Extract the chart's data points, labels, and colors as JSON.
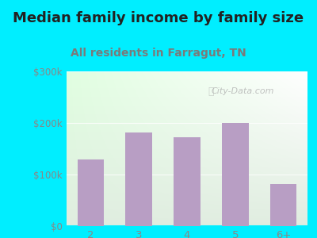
{
  "title": "Median family income by family size",
  "subtitle": "All residents in Farragut, TN",
  "categories": [
    "2",
    "3",
    "4",
    "5",
    "6+"
  ],
  "values": [
    130000,
    182000,
    173000,
    200000,
    82000
  ],
  "bar_color": "#b89ec4",
  "title_fontsize": 13,
  "subtitle_fontsize": 10,
  "title_color": "#222222",
  "subtitle_color": "#7a7a7a",
  "tick_color": "#888888",
  "background_outer": "#00eeff",
  "ylim": [
    0,
    300000
  ],
  "yticks": [
    0,
    100000,
    200000,
    300000
  ],
  "ytick_labels": [
    "$0",
    "$100k",
    "$200k",
    "$300k"
  ],
  "watermark": "City-Data.com"
}
